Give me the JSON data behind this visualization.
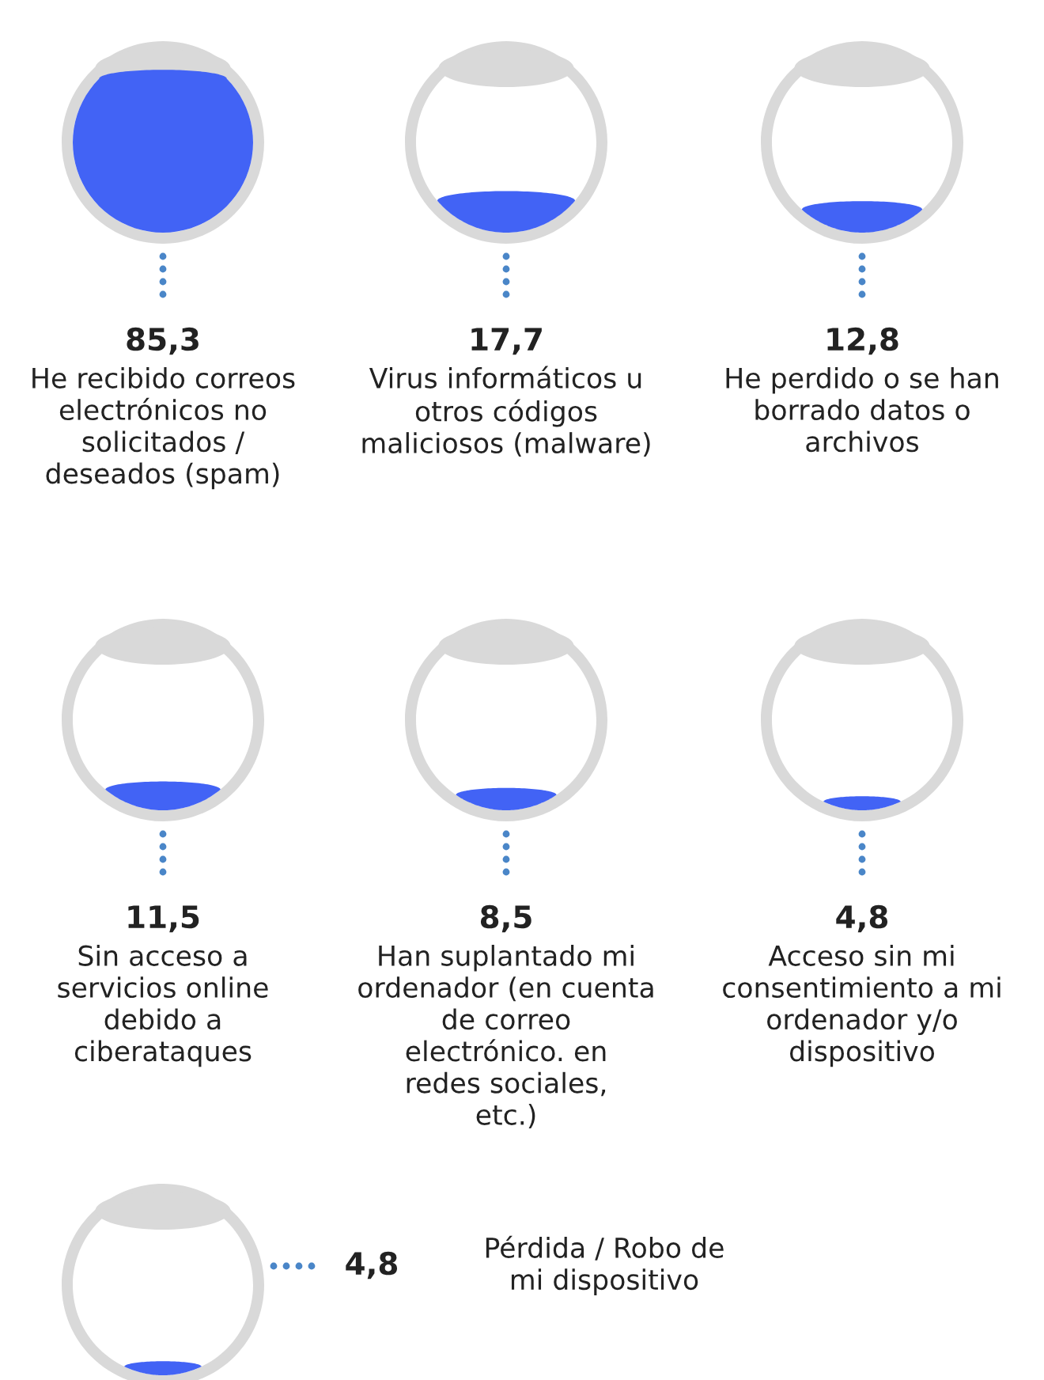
{
  "chart_data": {
    "type": "other",
    "categories": [
      "He recibido correos electrónicos no solicitados / deseados (spam)",
      "Virus informáticos u otros códigos maliciosos (malware)",
      "He perdido o se han borrado datos o archivos",
      "Sin acceso a servicios online debido a ciberataques",
      "Han suplantado mi ordenador (en cuenta de correo electrónico. en redes sociales, etc.)",
      "Acceso sin mi consentimiento a mi ordenador y/o dispositivo",
      "Pérdida / Robo de mi dispositivo"
    ],
    "values": [
      85.3,
      17.7,
      12.8,
      11.5,
      8.5,
      4.8,
      4.8
    ],
    "value_labels": [
      "85,3",
      "17,7",
      "12,8",
      "11,5",
      "8,5",
      "4,8",
      "4,8"
    ],
    "color": "#4263f5"
  }
}
